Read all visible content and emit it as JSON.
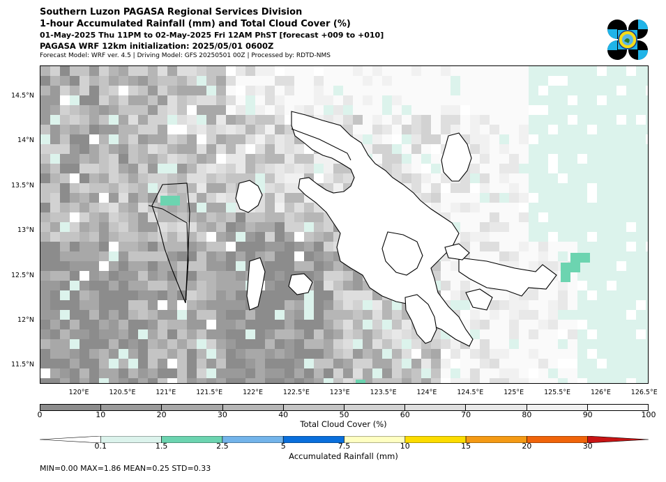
{
  "header": {
    "line1": "Southern Luzon PAGASA Regional Services Division",
    "line2": "1-hour Accumulated Rainfall (mm) and Total Cloud Cover (%)",
    "line3": "01-May-2025 Thu 11PM to 02-May-2025 Fri 12AM PhST [forecast +009 to +010]",
    "line4": "PAGASA WRF 12km initialization: 2025/05/01 0600Z",
    "line5": "Forecast Model: WRF ver. 4.5 | Driving Model: GFS 20250501 00Z | Processed by: RDTD-NMS"
  },
  "map": {
    "lat_range": [
      11.3,
      14.85
    ],
    "lon_range": [
      119.55,
      126.55
    ],
    "lat_labels": [
      "14.5°N",
      "14°N",
      "13.5°N",
      "13°N",
      "12.5°N",
      "12°N",
      "11.5°N"
    ],
    "lat_values": [
      14.5,
      14.0,
      13.5,
      13.0,
      12.5,
      12.0,
      11.5
    ],
    "lon_labels": [
      "120°E",
      "120.5°E",
      "121°E",
      "121.5°E",
      "122°E",
      "122.5°E",
      "123°E",
      "123.5°E",
      "124°E",
      "124.5°E",
      "125°E",
      "125.5°E",
      "126°E",
      "126.5°E"
    ],
    "lon_values": [
      120.0,
      120.5,
      121.0,
      121.5,
      122.0,
      122.5,
      123.0,
      123.5,
      124.0,
      124.5,
      125.0,
      125.5,
      126.0,
      126.5
    ]
  },
  "cloud_legend": {
    "ticks": [
      "0",
      "10",
      "20",
      "30",
      "40",
      "50",
      "60",
      "70",
      "80",
      "90",
      "100"
    ],
    "colors": [
      "#8c8c8c",
      "#9a9a9a",
      "#a8a8a8",
      "#b6b6b6",
      "#c4c4c4",
      "#d2d2d2",
      "#dedede",
      "#e8e8e8",
      "#f1f1f1",
      "#fafafa"
    ],
    "label": "Total Cloud Cover (%)"
  },
  "rain_legend": {
    "ticks": [
      "0.1",
      "1.5",
      "2.5",
      "5",
      "7.5",
      "10",
      "15",
      "20",
      "30"
    ],
    "colors": [
      "#ffffff",
      "#dcf3ec",
      "#6cd4b0",
      "#73b4ea",
      "#0a6fdc",
      "#ffffc2",
      "#fcdc00",
      "#f49a14",
      "#f0640a",
      "#c81414"
    ],
    "label": "Accumulated Rainfall (mm)"
  },
  "stats": "MIN=0.00   MAX=1.86   MEAN=0.25   STD=0.33"
}
